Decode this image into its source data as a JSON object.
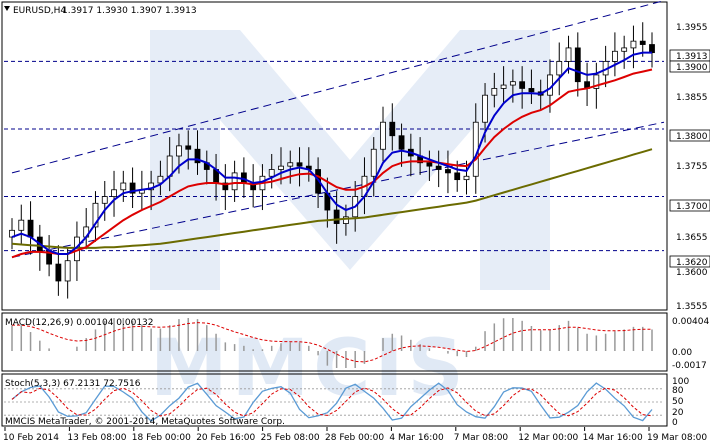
{
  "header": {
    "symbol": "EURUSD,H4",
    "ohlc": "1.3917 1.3930 1.3907 1.3913"
  },
  "watermark_text": "MMCIS",
  "copyright": "MMCIS MetaTrader, © 2001-2014, MetaQuotes Software Corp.",
  "price_axis": {
    "ticks": [
      "1.3955",
      "1.3855",
      "1.3755",
      "1.3655",
      "1.3555"
    ],
    "boxed_levels": [
      {
        "label": "1.3913",
        "style": "white"
      },
      {
        "label": "1.3900",
        "style": "white"
      },
      {
        "label": "1.3800",
        "style": "white"
      },
      {
        "label": "1.3700",
        "style": "white"
      },
      {
        "label": "1.3620",
        "style": "white"
      },
      {
        "label": "1.3600",
        "style": "plain"
      }
    ],
    "horizontal_levels": [
      1.39,
      1.38,
      1.37,
      1.362
    ]
  },
  "macd": {
    "label": "MACD(12,26,9) 0.00104 0.00132",
    "ticks": [
      "0.00404",
      "0.00",
      "-0.0017"
    ]
  },
  "stoch": {
    "label": "Stoch(5,3,3) 67.2131 72.7516",
    "ticks": [
      "100",
      "80",
      "50",
      "20",
      "0"
    ]
  },
  "time_axis": [
    "10 Feb 2014",
    "13 Feb 08:00",
    "18 Feb 00:00",
    "20 Feb 16:00",
    "25 Feb 08:00",
    "28 Feb 00:00",
    "4 Mar 16:00",
    "7 Mar 08:00",
    "12 Mar 00:00",
    "14 Mar 16:00",
    "19 Mar 08:00"
  ],
  "colors": {
    "candles": "#000000",
    "ma_fast": "#0000cc",
    "ma_mid": "#dd0000",
    "ma_slow": "#6b6b00",
    "levels": "#00008b",
    "channel": "#00008b",
    "macd_signal": "#dd0000",
    "macd_hist": "#999999",
    "stoch_main": "#5b9bd5",
    "stoch_signal": "#dd0000"
  },
  "chart_data": {
    "type": "candlestick",
    "symbol": "EURUSD",
    "timeframe": "H4",
    "y_range": [
      1.3535,
      1.3985
    ],
    "series_close": [
      1.365,
      1.3665,
      1.364,
      1.362,
      1.36,
      1.3575,
      1.3605,
      1.364,
      1.3655,
      1.369,
      1.37,
      1.371,
      1.372,
      1.3705,
      1.371,
      1.372,
      1.373,
      1.376,
      1.3775,
      1.377,
      1.375,
      1.374,
      1.372,
      1.371,
      1.3735,
      1.372,
      1.371,
      1.373,
      1.374,
      1.3745,
      1.375,
      1.3745,
      1.374,
      1.3705,
      1.368,
      1.366,
      1.367,
      1.37,
      1.373,
      1.377,
      1.381,
      1.379,
      1.377,
      1.376,
      1.375,
      1.3745,
      1.374,
      1.3735,
      1.3725,
      1.373,
      1.381,
      1.385,
      1.386,
      1.3865,
      1.387,
      1.386,
      1.3855,
      1.385,
      1.388,
      1.39,
      1.392,
      1.387,
      1.386,
      1.388,
      1.39,
      1.3915,
      1.392,
      1.393,
      1.3925,
      1.3913
    ],
    "ma_fast": [
      1.364,
      1.3645,
      1.364,
      1.363,
      1.362,
      1.3615,
      1.3615,
      1.3625,
      1.364,
      1.366,
      1.368,
      1.3695,
      1.3705,
      1.3708,
      1.371,
      1.3712,
      1.3718,
      1.373,
      1.3745,
      1.3755,
      1.3755,
      1.375,
      1.374,
      1.3728,
      1.3728,
      1.3726,
      1.372,
      1.3722,
      1.3728,
      1.3735,
      1.374,
      1.3743,
      1.374,
      1.3725,
      1.3705,
      1.3688,
      1.368,
      1.3685,
      1.37,
      1.3722,
      1.375,
      1.3765,
      1.3768,
      1.3765,
      1.376,
      1.3755,
      1.375,
      1.3745,
      1.374,
      1.3738,
      1.376,
      1.3795,
      1.382,
      1.3838,
      1.385,
      1.3853,
      1.3853,
      1.3852,
      1.386,
      1.3875,
      1.389,
      1.3885,
      1.388,
      1.3882,
      1.3888,
      1.3895,
      1.3902,
      1.391,
      1.3913,
      1.3913
    ],
    "ma_mid": [
      1.361,
      1.3615,
      1.3618,
      1.3618,
      1.3617,
      1.3615,
      1.3615,
      1.362,
      1.3625,
      1.3635,
      1.3645,
      1.3655,
      1.3665,
      1.3673,
      1.368,
      1.3686,
      1.3692,
      1.37,
      1.3708,
      1.3715,
      1.3718,
      1.372,
      1.372,
      1.3718,
      1.372,
      1.372,
      1.3718,
      1.372,
      1.3722,
      1.3726,
      1.373,
      1.3733,
      1.3734,
      1.373,
      1.3722,
      1.3714,
      1.371,
      1.371,
      1.3715,
      1.3722,
      1.3735,
      1.3745,
      1.375,
      1.3752,
      1.3752,
      1.3752,
      1.375,
      1.3748,
      1.3746,
      1.3745,
      1.3755,
      1.3772,
      1.3788,
      1.38,
      1.381,
      1.3818,
      1.3824,
      1.3828,
      1.3835,
      1.3845,
      1.3855,
      1.3858,
      1.386,
      1.3864,
      1.3868,
      1.3872,
      1.3877,
      1.3882,
      1.3885,
      1.3888
    ],
    "ma_slow": [
      1.363,
      1.3629,
      1.3628,
      1.3627,
      1.3626,
      1.3625,
      1.3624,
      1.3624,
      1.3624,
      1.3624,
      1.3625,
      1.3625,
      1.3626,
      1.3627,
      1.3628,
      1.3629,
      1.363,
      1.3632,
      1.3634,
      1.3636,
      1.3638,
      1.364,
      1.3642,
      1.3644,
      1.3646,
      1.3648,
      1.365,
      1.3652,
      1.3654,
      1.3656,
      1.3658,
      1.366,
      1.3662,
      1.3664,
      1.3665,
      1.3666,
      1.3667,
      1.3668,
      1.3669,
      1.3671,
      1.3673,
      1.3675,
      1.3677,
      1.3679,
      1.3681,
      1.3683,
      1.3685,
      1.3687,
      1.3689,
      1.3691,
      1.3694,
      1.3698,
      1.3702,
      1.3706,
      1.371,
      1.3714,
      1.3718,
      1.3722,
      1.3726,
      1.373,
      1.3734,
      1.3738,
      1.3742,
      1.3746,
      1.375,
      1.3754,
      1.3758,
      1.3762,
      1.3766,
      1.377
    ]
  }
}
